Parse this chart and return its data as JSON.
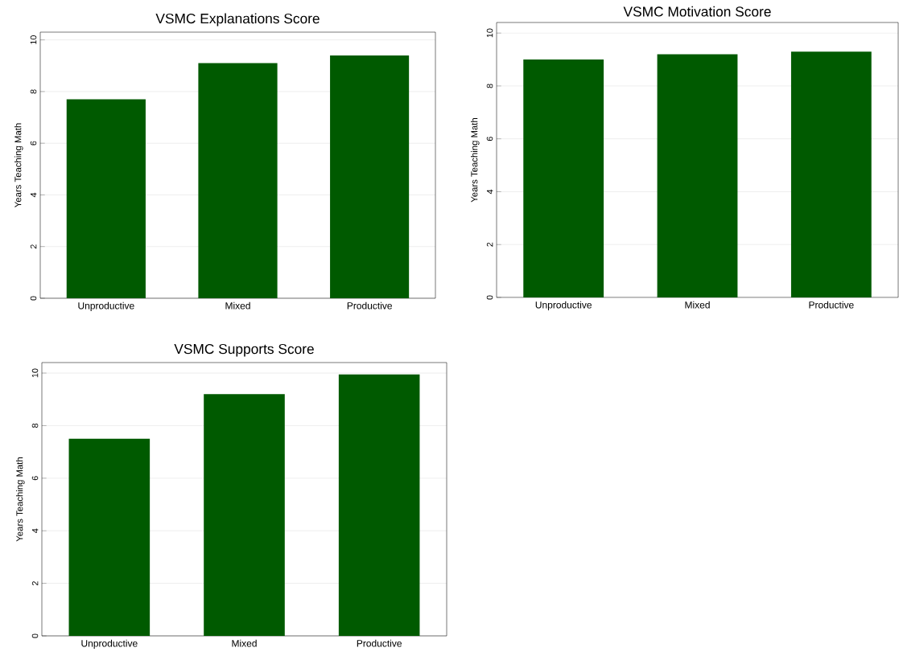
{
  "chart_data": [
    {
      "type": "bar",
      "title": "VSMC Explanations Score",
      "ylabel": "Years Teaching Math",
      "categories": [
        "Unproductive",
        "Mixed",
        "Productive"
      ],
      "values": [
        7.7,
        9.1,
        9.4
      ],
      "color": "#005a00",
      "ylim": [
        0,
        10.3
      ],
      "yticks": [
        0,
        2,
        4,
        6,
        8,
        10
      ],
      "grid": "y"
    },
    {
      "type": "bar",
      "title": "VSMC Motivation Score",
      "ylabel": "Years Teaching Math",
      "categories": [
        "Unproductive",
        "Mixed",
        "Productive"
      ],
      "values": [
        9.0,
        9.2,
        9.3
      ],
      "color": "#005a00",
      "ylim": [
        0,
        10.4
      ],
      "yticks": [
        0,
        2,
        4,
        6,
        8,
        10
      ],
      "grid": "y"
    },
    {
      "type": "bar",
      "title": "VSMC Supports Score",
      "ylabel": "Years Teaching Math",
      "categories": [
        "Unproductive",
        "Mixed",
        "Productive"
      ],
      "values": [
        7.5,
        9.2,
        9.95
      ],
      "color": "#005a00",
      "ylim": [
        0,
        10.4
      ],
      "yticks": [
        0,
        2,
        4,
        6,
        8,
        10
      ],
      "grid": "y"
    }
  ]
}
